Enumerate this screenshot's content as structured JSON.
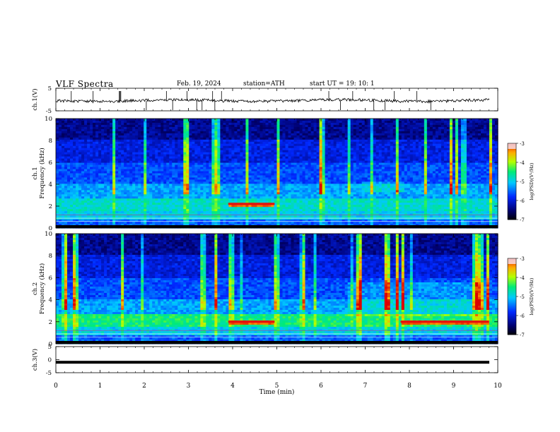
{
  "header": {
    "title": "VLF  Spectra",
    "date": "Feb. 19, 2024",
    "station": "station=ATH",
    "start_ut": "start  UT  =   19: 10: 1"
  },
  "chart_data": [
    {
      "type": "line",
      "panel": "ch.1 waveform",
      "ylabel": "ch.1(V)",
      "ylim": [
        -5,
        5
      ],
      "yticks": [
        "5",
        "-5"
      ],
      "xlim": [
        0,
        10
      ],
      "series": [
        {
          "values": "noisy trace near 0 V with sporadic spikes"
        }
      ]
    },
    {
      "type": "heatmap",
      "panel": "ch.1 spectrogram",
      "ylabel": "ch.1\nFrequency  (kHz)",
      "ylim": [
        0,
        10
      ],
      "yticks": [
        "0",
        "2",
        "4",
        "6",
        "8",
        "10"
      ],
      "xlim": [
        0,
        10
      ],
      "colorbar": {
        "label": "log(PSD)(V²/Hz)",
        "range": [
          -7,
          -3
        ],
        "ticks": [
          "-3",
          "-4",
          "-5",
          "-6",
          "-7"
        ]
      },
      "features": [
        {
          "label": "enhanced band ~2.2 kHz",
          "x_min": 3.9,
          "x_max": 4.95,
          "freq_khz": 2.2
        }
      ]
    },
    {
      "type": "heatmap",
      "panel": "ch.2 spectrogram",
      "ylabel": "ch.2\nFrequency  (kHz)",
      "ylim": [
        0,
        10
      ],
      "yticks": [
        "0",
        "2",
        "4",
        "6",
        "8",
        "10"
      ],
      "xlim": [
        0,
        10
      ],
      "colorbar": {
        "label": "log(PSD)(V²/Hz)",
        "range": [
          -7,
          -3
        ],
        "ticks": [
          "-3",
          "-4",
          "-5",
          "-6",
          "-7"
        ]
      },
      "features": [
        {
          "label": "enhanced band ~2 kHz",
          "x_min": 3.9,
          "x_max": 4.95,
          "freq_khz": 2.0
        },
        {
          "label": "enhanced band ~2 kHz",
          "x_min": 7.8,
          "x_max": 9.8,
          "freq_khz": 2.0
        }
      ]
    },
    {
      "type": "line",
      "panel": "ch.3 waveform",
      "ylabel": "ch.3(V)",
      "ylim": [
        -5,
        5
      ],
      "yticks": [
        "5",
        "0",
        "-5"
      ],
      "xlim": [
        0,
        10
      ],
      "series": [
        {
          "values": "flat line near -1 V"
        }
      ]
    }
  ],
  "xaxis": {
    "label": "Time  (min)",
    "ticks": [
      "0",
      "1",
      "2",
      "3",
      "4",
      "5",
      "6",
      "7",
      "8",
      "9",
      "10"
    ]
  }
}
